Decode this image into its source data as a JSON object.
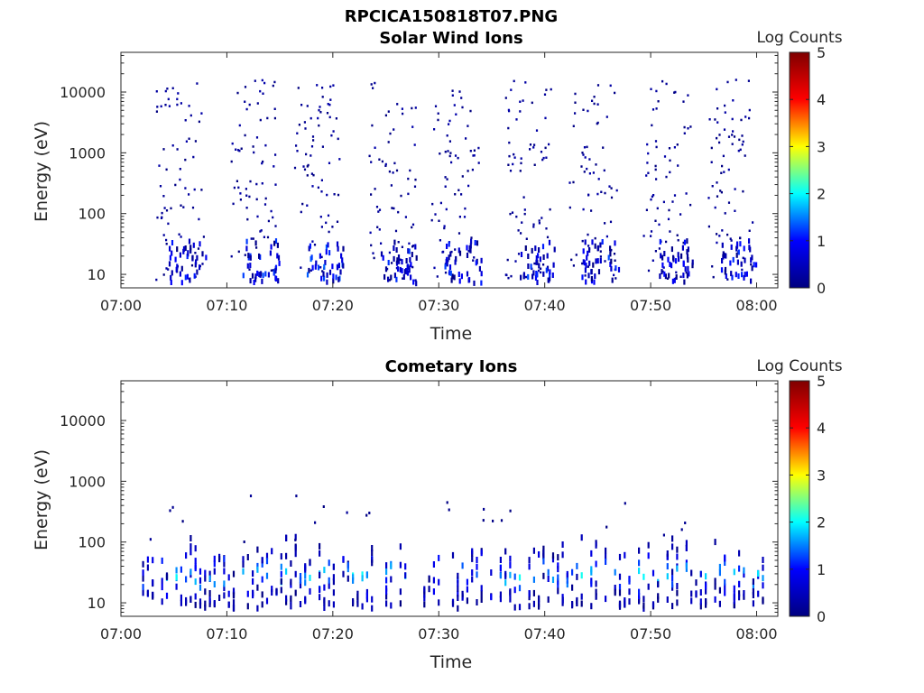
{
  "figure": {
    "filename_title": "RPCICA150818T07.PNG"
  },
  "colormap": {
    "name": "jet",
    "stops": [
      "#00007f",
      "#0000ff",
      "#00ffff",
      "#ffff00",
      "#ff0000",
      "#7f0000"
    ]
  },
  "chart_data": [
    {
      "type": "heatmap",
      "title": "Solar Wind Ions",
      "xlabel": "Time",
      "ylabel": "Energy (eV)",
      "xlim": [
        "07:00",
        "08:02"
      ],
      "x_ticks": [
        "07:00",
        "07:10",
        "07:20",
        "07:30",
        "07:40",
        "07:50",
        "08:00"
      ],
      "ylim": [
        6,
        45000
      ],
      "y_scale": "log",
      "y_ticks": [
        "10",
        "100",
        "1000",
        "10000"
      ],
      "colorbar": {
        "label": "Log Counts",
        "min": 0,
        "max": 5,
        "ticks": [
          "0",
          "1",
          "2",
          "3",
          "4",
          "5"
        ]
      },
      "bursts": [
        {
          "time": "07:05",
          "value_range": [
            0,
            1.2
          ]
        },
        {
          "time": "07:12",
          "value_range": [
            0,
            1.3
          ]
        },
        {
          "time": "07:18",
          "value_range": [
            0,
            1.4
          ]
        },
        {
          "time": "07:25",
          "value_range": [
            0,
            1.3
          ]
        },
        {
          "time": "07:31",
          "value_range": [
            0,
            1.3
          ]
        },
        {
          "time": "07:38",
          "value_range": [
            0,
            1.3
          ]
        },
        {
          "time": "07:44",
          "value_range": [
            0,
            1.3
          ]
        },
        {
          "time": "07:51",
          "value_range": [
            0,
            1.2
          ]
        },
        {
          "time": "07:57",
          "value_range": [
            0,
            1.3
          ]
        }
      ]
    },
    {
      "type": "heatmap",
      "title": "Cometary Ions",
      "xlabel": "Time",
      "ylabel": "Energy (eV)",
      "xlim": [
        "07:00",
        "08:02"
      ],
      "x_ticks": [
        "07:00",
        "07:10",
        "07:20",
        "07:30",
        "07:40",
        "07:50",
        "08:00"
      ],
      "ylim": [
        6,
        45000
      ],
      "y_scale": "log",
      "y_ticks": [
        "10",
        "100",
        "1000",
        "10000"
      ],
      "colorbar": {
        "label": "Log Counts",
        "min": 0,
        "max": 5,
        "ticks": [
          "0",
          "1",
          "2",
          "3",
          "4",
          "5"
        ]
      },
      "energy_band_eV": [
        8,
        100
      ],
      "peak_log_counts": 2.2
    }
  ]
}
